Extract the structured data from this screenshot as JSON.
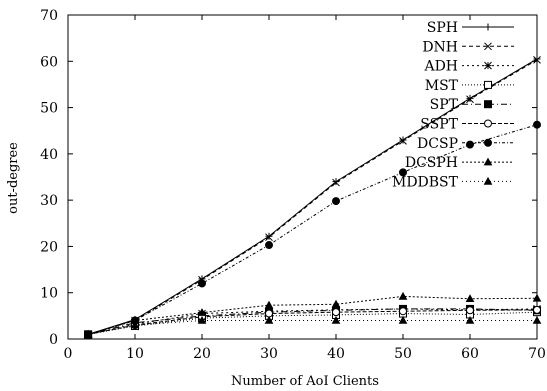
{
  "chart_data": {
    "type": "line",
    "xlabel": "Number of AoI Clients",
    "ylabel": "out-degree",
    "xlim": [
      0,
      70
    ],
    "ylim": [
      0,
      70
    ],
    "xticks": [
      0,
      10,
      20,
      30,
      40,
      50,
      60,
      70
    ],
    "yticks": [
      0,
      10,
      20,
      30,
      40,
      50,
      60,
      70
    ],
    "legend_position": "top-right",
    "x": [
      3,
      10,
      20,
      30,
      40,
      50,
      60,
      70
    ],
    "series": [
      {
        "name": "SPH",
        "marker": "plus",
        "dash": "",
        "values": [
          1,
          4.2,
          13,
          22.2,
          34,
          43,
          52,
          60.5
        ]
      },
      {
        "name": "DNH",
        "marker": "cross",
        "dash": "4,3",
        "values": [
          1,
          4,
          12.8,
          22,
          33.8,
          42.8,
          51.8,
          60.3
        ]
      },
      {
        "name": "ADH",
        "marker": "star",
        "dash": "2,3",
        "values": [
          1,
          3.2,
          5.5,
          6,
          6.3,
          6.5,
          6.3,
          6.5
        ]
      },
      {
        "name": "MST",
        "marker": "square",
        "dash": "1,2",
        "values": [
          1,
          2.8,
          4.5,
          5,
          5.2,
          5.5,
          5.3,
          5.8
        ]
      },
      {
        "name": "SPT",
        "marker": "fsquare",
        "dash": "6,3,1,3",
        "values": [
          1,
          3.5,
          5,
          5.8,
          6.2,
          6.5,
          6.5,
          6.2
        ]
      },
      {
        "name": "SSPT",
        "marker": "circle",
        "dash": "4,2",
        "values": [
          1,
          3,
          4.8,
          5.5,
          5.8,
          6,
          6.2,
          6.3
        ]
      },
      {
        "name": "DCSP",
        "marker": "fcircle",
        "dash": "3,2,1,2",
        "values": [
          1,
          4,
          12,
          20.3,
          29.8,
          36,
          42,
          46.3
        ]
      },
      {
        "name": "DCSPH",
        "marker": "triangle",
        "dash": "2,2",
        "values": [
          1,
          4,
          5.7,
          7.3,
          7.5,
          9.2,
          8.7,
          8.8
        ]
      },
      {
        "name": "MDDBST",
        "marker": "triangle",
        "dash": "1,3",
        "values": [
          1,
          3,
          4,
          4,
          4,
          4,
          4,
          4
        ]
      }
    ]
  }
}
